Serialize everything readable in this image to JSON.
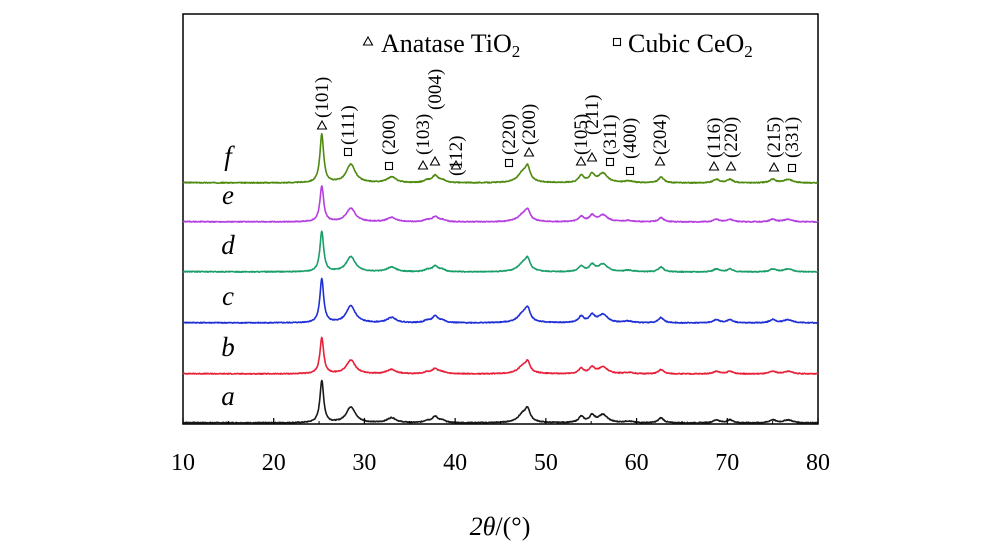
{
  "chart_data": {
    "type": "line",
    "title": "",
    "xlabel": "2θ/(°)",
    "xlabel_parts": {
      "var": "2θ",
      "unit": "/(°)"
    },
    "ylabel": "",
    "xlim": [
      10,
      80
    ],
    "xticks": [
      10,
      20,
      30,
      40,
      50,
      60,
      70,
      80
    ],
    "y_axis_ticks_shown": false,
    "legend": {
      "placement": "top-right",
      "entries": [
        {
          "marker": "triangle",
          "label": "Anatase TiO2",
          "text": "Anatase TiO",
          "sub": "2"
        },
        {
          "marker": "square",
          "label": "Cubic CeO2",
          "text": "Cubic CeO",
          "sub": "2"
        }
      ]
    },
    "series": [
      {
        "name": "a",
        "color": "#1a1a1a",
        "scale": 1.0
      },
      {
        "name": "b",
        "color": "#e8213a",
        "scale": 0.85
      },
      {
        "name": "c",
        "color": "#1f2fd6",
        "scale": 1.05
      },
      {
        "name": "d",
        "color": "#1a9e6a",
        "scale": 0.95
      },
      {
        "name": "e",
        "color": "#b540e0",
        "scale": 0.85
      },
      {
        "name": "f",
        "color": "#4f8a10",
        "scale": 1.15
      }
    ],
    "peaks": [
      {
        "phase": "anatase",
        "pos": 25.3,
        "height": 42,
        "width": 0.25
      },
      {
        "phase": "ceo2",
        "pos": 28.5,
        "height": 16,
        "width": 0.6
      },
      {
        "phase": "ceo2",
        "pos": 33.0,
        "height": 5,
        "width": 0.6
      },
      {
        "phase": "anatase",
        "pos": 36.9,
        "height": 2,
        "width": 0.4
      },
      {
        "phase": "anatase",
        "pos": 37.8,
        "height": 6,
        "width": 0.4
      },
      {
        "phase": "anatase",
        "pos": 38.6,
        "height": 2,
        "width": 0.4
      },
      {
        "phase": "ceo2",
        "pos": 47.5,
        "height": 9,
        "width": 0.7
      },
      {
        "phase": "anatase",
        "pos": 48.0,
        "height": 10,
        "width": 0.3
      },
      {
        "phase": "anatase",
        "pos": 53.9,
        "height": 6,
        "width": 0.35
      },
      {
        "phase": "anatase",
        "pos": 55.1,
        "height": 7,
        "width": 0.35
      },
      {
        "phase": "ceo2",
        "pos": 56.3,
        "height": 8,
        "width": 0.6
      },
      {
        "phase": "ceo2",
        "pos": 59.1,
        "height": 1.5,
        "width": 0.6
      },
      {
        "phase": "anatase",
        "pos": 62.7,
        "height": 5,
        "width": 0.35
      },
      {
        "phase": "anatase",
        "pos": 68.8,
        "height": 3,
        "width": 0.4
      },
      {
        "phase": "anatase",
        "pos": 70.3,
        "height": 3,
        "width": 0.4
      },
      {
        "phase": "anatase",
        "pos": 75.0,
        "height": 3,
        "width": 0.4
      },
      {
        "phase": "ceo2",
        "pos": 76.7,
        "height": 3,
        "width": 0.6
      }
    ],
    "annotations": [
      {
        "label": "(101)",
        "pos": 25.3,
        "marker": "triangle"
      },
      {
        "label": "(111)",
        "pos": 28.5,
        "marker": "square"
      },
      {
        "label": "(200)",
        "pos": 33.0,
        "marker": "square"
      },
      {
        "label": "(103)",
        "pos": 36.9,
        "marker": "triangle"
      },
      {
        "label": "(004)",
        "pos": 37.8,
        "marker": "triangle"
      },
      {
        "label": "(112)",
        "pos": 38.6,
        "marker": "triangle"
      },
      {
        "label": "(220)",
        "pos": 46.5,
        "marker": "square"
      },
      {
        "label": "(200)",
        "pos": 48.0,
        "marker": "triangle"
      },
      {
        "label": "(105)",
        "pos": 53.9,
        "marker": "triangle"
      },
      {
        "label": "(211)",
        "pos": 55.1,
        "marker": "triangle"
      },
      {
        "label": "(311)",
        "pos": 56.3,
        "marker": "square"
      },
      {
        "label": "(400)",
        "pos": 59.1,
        "marker": "square"
      },
      {
        "label": "(204)",
        "pos": 62.7,
        "marker": "triangle"
      },
      {
        "label": "(116)",
        "pos": 68.8,
        "marker": "triangle"
      },
      {
        "label": "(220)",
        "pos": 70.3,
        "marker": "triangle"
      },
      {
        "label": "(215)",
        "pos": 75.0,
        "marker": "triangle"
      },
      {
        "label": "(331)",
        "pos": 76.7,
        "marker": "square"
      }
    ]
  }
}
